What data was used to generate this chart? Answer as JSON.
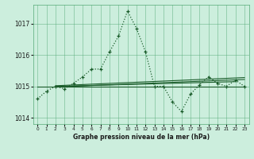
{
  "title": "Graphe pression niveau de la mer (hPa)",
  "background_color": "#cceedd",
  "plot_bg_color": "#cceedd",
  "grid_color": "#55aa77",
  "line_color": "#1a5c2a",
  "xlim": [
    -0.5,
    23.5
  ],
  "ylim": [
    1013.8,
    1017.6
  ],
  "yticks": [
    1014,
    1015,
    1016,
    1017
  ],
  "xticks": [
    0,
    1,
    2,
    3,
    4,
    5,
    6,
    7,
    8,
    9,
    10,
    11,
    12,
    13,
    14,
    15,
    16,
    17,
    18,
    19,
    20,
    21,
    22,
    23
  ],
  "main_series": [
    0,
    1,
    2,
    3,
    4,
    5,
    6,
    7,
    8,
    9,
    10,
    11,
    12,
    13,
    14,
    15,
    16,
    17,
    18,
    19,
    20,
    21,
    22,
    23
  ],
  "main_values": [
    1014.6,
    1014.85,
    1015.0,
    1014.92,
    1015.1,
    1015.3,
    1015.55,
    1015.55,
    1016.1,
    1016.6,
    1017.4,
    1016.85,
    1016.1,
    1015.0,
    1015.0,
    1014.5,
    1014.2,
    1014.75,
    1015.05,
    1015.3,
    1015.1,
    1015.0,
    1015.2,
    1015.0
  ],
  "trend1_x": [
    0,
    23
  ],
  "trend1_y": [
    1015.0,
    1015.0
  ],
  "trend2_x": [
    2,
    23
  ],
  "trend2_y": [
    1014.98,
    1015.22
  ],
  "trend3_x": [
    2,
    23
  ],
  "trend3_y": [
    1015.02,
    1015.28
  ],
  "trend4_x": [
    2,
    22
  ],
  "trend4_y": [
    1015.0,
    1015.15
  ]
}
